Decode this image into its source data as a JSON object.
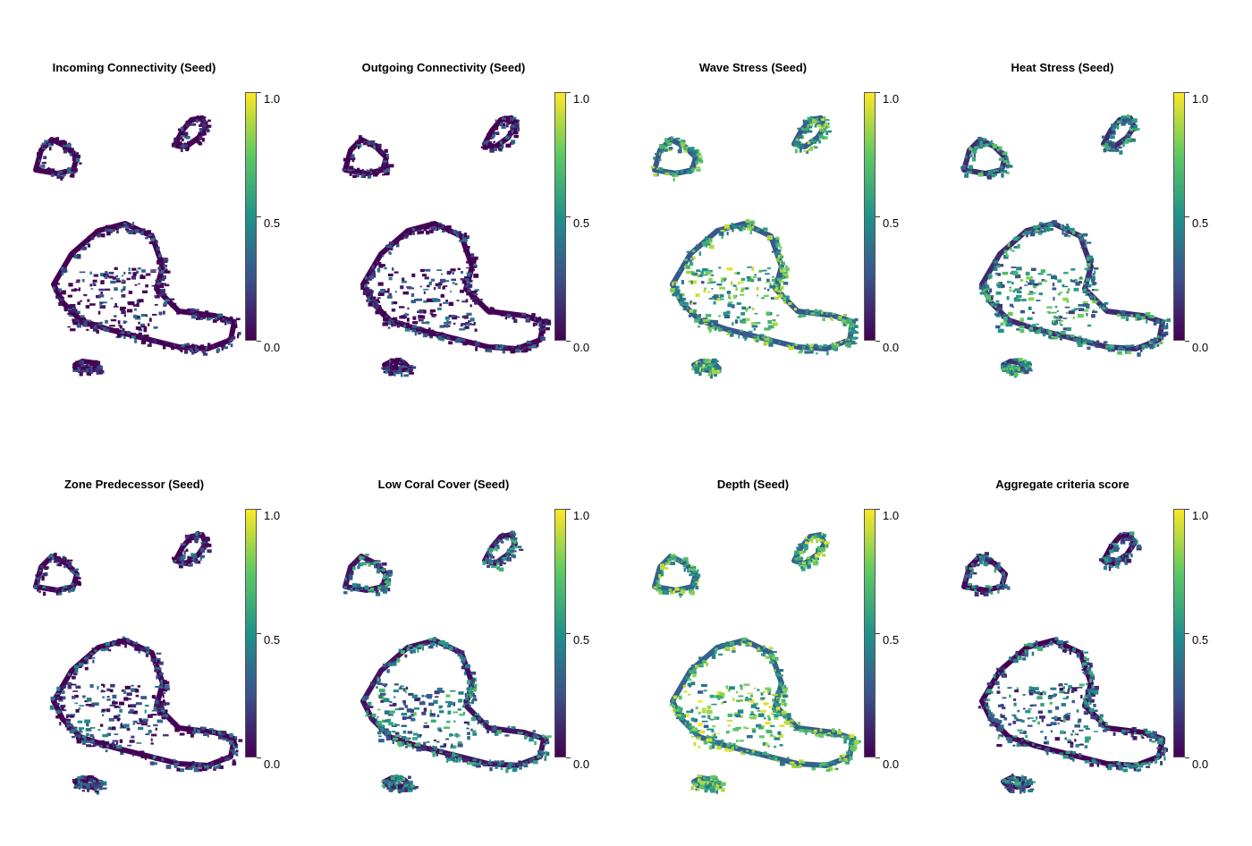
{
  "figure": {
    "colormap": [
      "#440154",
      "#3b528b",
      "#21918c",
      "#5ec962",
      "#fde725"
    ],
    "colorbar_ticks": [
      "0.0",
      "0.5",
      "1.0"
    ],
    "panels": [
      {
        "title": "Incoming Connectivity (Seed)",
        "tone": 0.08
      },
      {
        "title": "Outgoing Connectivity (Seed)",
        "tone": 0.1
      },
      {
        "title": "Wave Stress (Seed)",
        "tone": 0.62
      },
      {
        "title": "Heat Stress (Seed)",
        "tone": 0.48
      },
      {
        "title": "Zone Predecessor (Seed)",
        "tone": 0.15
      },
      {
        "title": "Low Coral Cover (Seed)",
        "tone": 0.4
      },
      {
        "title": "Depth (Seed)",
        "tone": 0.66
      },
      {
        "title": "Aggregate criteria score",
        "tone": 0.35
      }
    ]
  }
}
